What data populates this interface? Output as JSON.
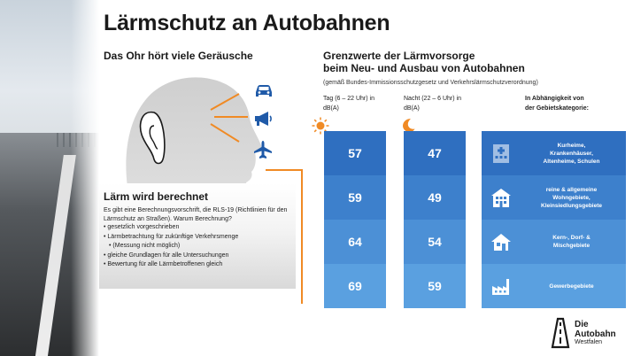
{
  "title": "Lärmschutz an Autobahnen",
  "left": {
    "heading": "Das Ohr hört viele Geräusche",
    "icons": [
      "car-icon",
      "megaphone-icon",
      "airplane-icon"
    ],
    "panel": {
      "heading": "Lärm wird berechnet",
      "text": "Es gibt eine Berechnungsvorschrift, die RLS-19 (Richtlinien für den Lärmschutz an Straßen). Warum Berechnung?",
      "bullets": [
        "gesetzlich vorgeschrieben",
        "Lärmbetrachtung für zukünftige Verkehrsmenge",
        "(Messung nicht möglich)",
        "gleiche Grundlagen für alle Untersuchungen",
        "Bewertung für alle Lärmbetroffenen gleich"
      ]
    }
  },
  "right": {
    "heading_line1": "Grenzwerte der Lärmvorsorge",
    "heading_line2": "beim Neu- und Ausbau von Autobahnen",
    "note": "(gemäß Bundes-Immissionsschutzgesetz und Verkehrslärmschutzverordnung)",
    "day_header_1": "Tag (6 – 22 Uhr) in",
    "day_header_2": "dB(A)",
    "night_header_1": "Nacht (22 – 6 Uhr) in",
    "night_header_2": "dB(A)",
    "cat_header_1": "In Abhängigkeit von",
    "cat_header_2": "der Gebietskategorie:",
    "day_values": [
      "57",
      "59",
      "64",
      "69"
    ],
    "night_values": [
      "47",
      "49",
      "54",
      "59"
    ],
    "categories": [
      {
        "line1": "Kurheime,",
        "line2": "Krankenhäuser,",
        "line3": "Altenheime, Schulen",
        "icon": "hospital-icon"
      },
      {
        "line1": "reine & allgemeine",
        "line2": "Wohngebiete,",
        "line3": "Kleinsiedlungsgebiete",
        "icon": "apartment-building-icon"
      },
      {
        "line1": "Kern-, Dorf- &",
        "line2": "Mischgebiete",
        "line3": "",
        "icon": "house-icon"
      },
      {
        "line1": "Gewerbegebiete",
        "line2": "",
        "line3": "",
        "icon": "factory-icon"
      }
    ],
    "colors": {
      "cell0": "#2f6fc0",
      "cell1": "#3d80cc",
      "cell2": "#4c90d6",
      "cell3": "#5aa0e0",
      "accent": "#f08a24"
    }
  },
  "logo": {
    "line1": "Die",
    "line2": "Autobahn",
    "line3": "Westfalen"
  }
}
